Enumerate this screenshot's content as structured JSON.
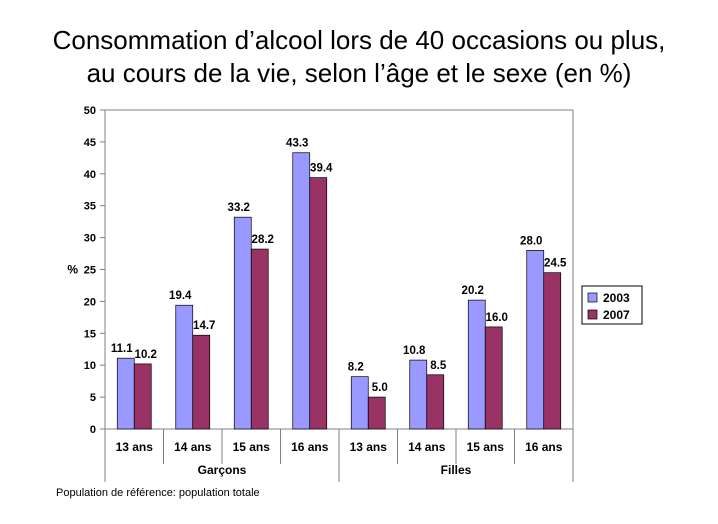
{
  "chart_data": {
    "type": "bar",
    "title_lines": [
      "Consommation d’alcool lors de 40 occasions ou plus,",
      "au cours de la vie, selon l’âge et le sexe (en %)"
    ],
    "ylabel": "% ",
    "ylim": [
      0,
      50
    ],
    "yticks": [
      0,
      5,
      10,
      15,
      20,
      25,
      30,
      35,
      40,
      45,
      50
    ],
    "grid": false,
    "legend_position": "right",
    "groups": [
      {
        "label": "Garçons",
        "categories": [
          "13 ans",
          "14 ans",
          "15 ans",
          "16 ans"
        ]
      },
      {
        "label": "Filles",
        "categories": [
          "13 ans",
          "14 ans",
          "15 ans",
          "16 ans"
        ]
      }
    ],
    "categories": [
      "13 ans",
      "14 ans",
      "15 ans",
      "16 ans",
      "13 ans",
      "14 ans",
      "15 ans",
      "16 ans"
    ],
    "series": [
      {
        "name": "2003",
        "color": "#9999ff",
        "values": [
          11.1,
          19.4,
          33.2,
          43.3,
          8.2,
          10.8,
          20.2,
          28.0
        ],
        "labels": [
          "11.1",
          "19.4",
          "33.2",
          "43.3",
          "8.2",
          "10.8",
          "20.2",
          "28.0"
        ]
      },
      {
        "name": "2007",
        "color": "#993366",
        "values": [
          10.2,
          14.7,
          28.2,
          39.4,
          5.0,
          8.5,
          16.0,
          24.5
        ],
        "labels": [
          "10.2",
          "14.7",
          "28.2",
          "39.4",
          "5.0",
          "8.5",
          "16.0",
          "24.5"
        ]
      }
    ],
    "footnote": "Population de référence: population totale"
  }
}
